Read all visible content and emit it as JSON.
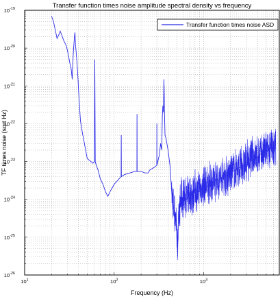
{
  "chart_data": {
    "type": "line",
    "title": "Transfer function times noise amplitude spectral density vs frequency",
    "xlabel": "Frequency (Hz)",
    "ylabel": "TF times noise (sqrt Hz)",
    "xscale": "log",
    "yscale": "log",
    "xlim": [
      10,
      7000
    ],
    "ylim": [
      1e-26,
      1e-19
    ],
    "grid": true,
    "legend": "top-right",
    "x_tick_labels": [
      {
        "value": 10,
        "base": "10",
        "exp": "1"
      },
      {
        "value": 100,
        "base": "10",
        "exp": "2"
      },
      {
        "value": 1000,
        "base": "10",
        "exp": "3"
      }
    ],
    "y_tick_labels": [
      {
        "value": 1e-19,
        "base": "10",
        "exp": "-19"
      },
      {
        "value": 1e-20,
        "base": "10",
        "exp": "-20"
      },
      {
        "value": 1e-21,
        "base": "10",
        "exp": "-21"
      },
      {
        "value": 1e-22,
        "base": "10",
        "exp": "-22"
      },
      {
        "value": 1e-23,
        "base": "10",
        "exp": "-23"
      },
      {
        "value": 1e-24,
        "base": "10",
        "exp": "-24"
      },
      {
        "value": 1e-25,
        "base": "10",
        "exp": "-25"
      },
      {
        "value": 1e-26,
        "base": "10",
        "exp": "-26"
      }
    ],
    "series": [
      {
        "name": "Transfer function times noise ASD",
        "color": "#2a2ae8",
        "points": [
          [
            20,
            7e-20
          ],
          [
            21,
            5e-20
          ],
          [
            22,
            3e-20
          ],
          [
            23,
            1.8e-20
          ],
          [
            24,
            2.2e-20
          ],
          [
            25,
            2.8e-20
          ],
          [
            26,
            2.2e-20
          ],
          [
            27,
            1.7e-20
          ],
          [
            28,
            1.4e-20
          ],
          [
            29,
            1.2e-20
          ],
          [
            30,
            9e-21
          ],
          [
            31,
            6e-21
          ],
          [
            32,
            4e-21
          ],
          [
            33,
            3e-21
          ],
          [
            34,
            1.5e-21
          ],
          [
            35,
            8e-21
          ],
          [
            36,
            2e-20
          ],
          [
            36.5,
            2.6e-20
          ],
          [
            37,
            1.2e-20
          ],
          [
            38,
            6e-21
          ],
          [
            39,
            2.5e-21
          ],
          [
            40,
            8e-22
          ],
          [
            41,
            3e-22
          ],
          [
            42,
            1.2e-22
          ],
          [
            44,
            6e-23
          ],
          [
            46,
            3.5e-23
          ],
          [
            48,
            2e-23
          ],
          [
            50,
            1.2e-23
          ],
          [
            55,
            1e-23
          ],
          [
            58,
            9e-24
          ],
          [
            60,
            1e-23
          ],
          [
            60.8,
            5e-21
          ],
          [
            61.5,
            1e-23
          ],
          [
            63,
            8e-24
          ],
          [
            66,
            6e-24
          ],
          [
            70,
            3.5e-24
          ],
          [
            75,
            2.5e-24
          ],
          [
            80,
            1.6e-24
          ],
          [
            85,
            1.2e-24
          ],
          [
            90,
            1.6e-24
          ],
          [
            95,
            2e-24
          ],
          [
            100,
            2.5e-24
          ],
          [
            110,
            3.2e-24
          ],
          [
            119.5,
            4e-24
          ],
          [
            120,
            5e-23
          ],
          [
            120.5,
            4e-24
          ],
          [
            130,
            4.5e-24
          ],
          [
            150,
            5e-24
          ],
          [
            170,
            5.5e-24
          ],
          [
            179.5,
            5.5e-24
          ],
          [
            180,
            1.8e-22
          ],
          [
            180.5,
            5.5e-24
          ],
          [
            200,
            5.5e-24
          ],
          [
            220,
            5e-24
          ],
          [
            240,
            5e-24
          ],
          [
            250,
            6e-24
          ],
          [
            280,
            7e-24
          ],
          [
            299.5,
            8e-24
          ],
          [
            300,
            1e-22
          ],
          [
            300.5,
            8e-24
          ],
          [
            320,
            1.5e-23
          ],
          [
            330,
            3e-23
          ],
          [
            340,
            2e-23
          ],
          [
            345,
            1.5e-22
          ],
          [
            350,
            3e-22
          ],
          [
            355,
            2e-22
          ],
          [
            360,
            1.5e-21
          ],
          [
            365,
            2e-22
          ],
          [
            370,
            5e-23
          ],
          [
            380,
            4e-23
          ],
          [
            400,
            2e-23
          ],
          [
            420,
            8e-24
          ],
          [
            440,
            1.5e-24
          ],
          [
            460,
            6e-25
          ],
          [
            480,
            4e-25
          ],
          [
            500,
            2e-25
          ],
          [
            510,
            4e-26
          ],
          [
            520,
            2e-25
          ],
          [
            540,
            6e-25
          ],
          [
            560,
            1e-24
          ],
          [
            600,
            1.2e-24
          ],
          [
            650,
            1e-24
          ],
          [
            700,
            1.5e-24
          ],
          [
            750,
            1.2e-24
          ],
          [
            800,
            2e-24
          ],
          [
            850,
            1.5e-24
          ],
          [
            900,
            2e-24
          ],
          [
            950,
            1.8e-24
          ],
          [
            1000,
            2.5e-24
          ],
          [
            1100,
            2.2e-24
          ],
          [
            1200,
            3e-24
          ],
          [
            1300,
            2.8e-24
          ],
          [
            1400,
            3.5e-24
          ],
          [
            1500,
            3.2e-24
          ],
          [
            1700,
            4.5e-24
          ],
          [
            1900,
            4.2e-24
          ],
          [
            2100,
            5.5e-24
          ],
          [
            2300,
            6e-24
          ],
          [
            2500,
            7e-24
          ],
          [
            2800,
            8e-24
          ],
          [
            3100,
            1e-23
          ],
          [
            3400,
            1.2e-23
          ],
          [
            3700,
            1.4e-23
          ],
          [
            4000,
            1.3e-23
          ],
          [
            4300,
            1.6e-23
          ],
          [
            4600,
            1.5e-23
          ],
          [
            4900,
            2e-23
          ],
          [
            5200,
            1.8e-23
          ],
          [
            5500,
            2.5e-23
          ],
          [
            5800,
            2e-23
          ],
          [
            6100,
            2.5e-23
          ],
          [
            6400,
            2.2e-23
          ]
        ]
      }
    ]
  }
}
